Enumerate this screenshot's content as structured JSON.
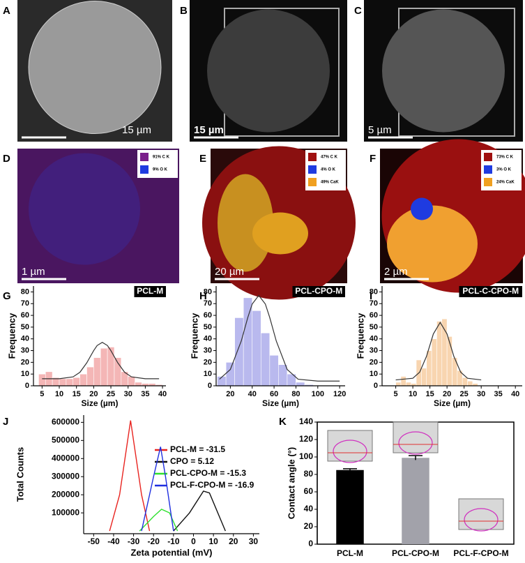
{
  "images": [
    {
      "label": "A",
      "scale_bar": "15 µm"
    },
    {
      "label": "B",
      "scale_bar": "15 µm"
    },
    {
      "label": "C",
      "scale_bar": "5 µm"
    },
    {
      "label": "D",
      "scale_bar": "1 µm",
      "legend": [
        {
          "text": "91% C K",
          "color": "#7a1f8a"
        },
        {
          "text": "9% O K",
          "color": "#1f3be0"
        }
      ]
    },
    {
      "label": "E",
      "scale_bar": "20 µm",
      "legend": [
        {
          "text": "47% C K",
          "color": "#a01010"
        },
        {
          "text": "4% O K",
          "color": "#1f3be0"
        },
        {
          "text": "49% CaK",
          "color": "#f0a020"
        }
      ]
    },
    {
      "label": "F",
      "scale_bar": "2 µm",
      "legend": [
        {
          "text": "73% C K",
          "color": "#a01010"
        },
        {
          "text": "3% O K",
          "color": "#1f3be0"
        },
        {
          "text": "24% CaK",
          "color": "#f0a020"
        }
      ]
    }
  ],
  "chart_data": [
    {
      "type": "histogram",
      "panel": "G",
      "title": "PCL-M",
      "x_label": "Size (µm)",
      "y_label": "Frequency",
      "color": "#f4b6b6",
      "bins": [
        4,
        6,
        8,
        10,
        12,
        14,
        16,
        18,
        20,
        22,
        24,
        26,
        28,
        30,
        32,
        34,
        36,
        38,
        40
      ],
      "counts": [
        10,
        12,
        7,
        6,
        6,
        7,
        10,
        16,
        24,
        32,
        33,
        24,
        12,
        8,
        3,
        2,
        2,
        1
      ],
      "fit": {
        "color": "#333333",
        "x": [
          5,
          10,
          14,
          16,
          18,
          20,
          21,
          22.5,
          24,
          25,
          27,
          29,
          31,
          35,
          39
        ],
        "values": [
          6,
          6,
          7.6,
          11.5,
          19.6,
          30,
          34.3,
          37,
          34.3,
          30,
          19.6,
          11.5,
          7.6,
          6,
          6
        ]
      },
      "xlim": [
        2.5,
        41
      ],
      "xticks": [
        5,
        10,
        15,
        20,
        25,
        30,
        35,
        40
      ],
      "ylim": [
        0,
        85
      ],
      "yticks": [
        0,
        10,
        20,
        30,
        40,
        50,
        60,
        70,
        80
      ]
    },
    {
      "type": "histogram",
      "panel": "H",
      "title": "PCL-CPO-M",
      "x_label": "Size (µm)",
      "y_label": "Frequency",
      "color": "#b9b9ee",
      "bins": [
        8,
        16,
        24,
        32,
        40,
        48,
        56,
        64,
        72,
        80,
        88,
        96
      ],
      "counts": [
        8,
        20,
        58,
        75,
        64,
        45,
        26,
        18,
        10,
        3,
        1
      ],
      "fit": {
        "color": "#333333",
        "x": [
          10,
          20,
          30,
          36,
          40,
          46,
          52,
          56,
          62,
          72,
          82,
          100,
          120
        ],
        "values": [
          5.6,
          13.9,
          38.2,
          58.3,
          69.7,
          77,
          69.7,
          58.3,
          38.2,
          13.9,
          5.6,
          4,
          4
        ]
      },
      "xlim": [
        7,
        125
      ],
      "xticks": [
        20,
        40,
        60,
        80,
        100,
        120
      ],
      "ylim": [
        0,
        85
      ],
      "yticks": [
        0,
        10,
        20,
        30,
        40,
        50,
        60,
        70,
        80
      ]
    },
    {
      "type": "histogram",
      "panel": "I",
      "title": "PCL-C-CPO-M",
      "x_label": "Size (µm)",
      "y_label": "Frequency",
      "color": "#f8d5b0",
      "bins": [
        5,
        6.5,
        8,
        9.5,
        11,
        12.5,
        14,
        15.5,
        17,
        18.5,
        20,
        21.5,
        23,
        24.5,
        26,
        27.5,
        29
      ],
      "counts": [
        3,
        8,
        3,
        2,
        22,
        15,
        30,
        40,
        55,
        57,
        42,
        24,
        13,
        7,
        4,
        2
      ],
      "fit": {
        "color": "#333333",
        "x": [
          5,
          10,
          12,
          14,
          16,
          18,
          20,
          22,
          24,
          26,
          30
        ],
        "values": [
          5,
          6.4,
          11.6,
          25.1,
          44.2,
          54,
          44.2,
          25.1,
          11.6,
          6.4,
          5
        ]
      },
      "xlim": [
        1,
        42
      ],
      "xticks": [
        5,
        10,
        15,
        20,
        25,
        30,
        35,
        40
      ],
      "ylim": [
        0,
        85
      ],
      "yticks": [
        0,
        10,
        20,
        30,
        40,
        50,
        60,
        70,
        80
      ]
    },
    {
      "type": "line",
      "panel": "J",
      "x_label": "Zeta potential (mV)",
      "y_label": "Total Counts",
      "series": [
        {
          "name": "PCL-M = -31.5",
          "color": "#e8231f",
          "x": [
            -42,
            -37,
            -31.5,
            -26,
            -22
          ],
          "values": [
            0,
            200000,
            610000,
            200000,
            0
          ]
        },
        {
          "name": "CPO = 5.12",
          "color": "#111111",
          "x": [
            -10,
            -2,
            5,
            8,
            16
          ],
          "values": [
            0,
            100000,
            220000,
            210000,
            0
          ]
        },
        {
          "name": "PCL-CPO-M = -15.3",
          "color": "#2fe02f",
          "x": [
            -27,
            -20,
            -16,
            -12,
            -8
          ],
          "values": [
            0,
            80000,
            120000,
            100000,
            0
          ]
        },
        {
          "name": "PCL-F-CPO-M = -16.9",
          "color": "#1f2fe0",
          "x": [
            -26,
            -20,
            -16.5,
            -14,
            -10
          ],
          "values": [
            0,
            300000,
            465000,
            300000,
            0
          ]
        }
      ],
      "xlim": [
        -55,
        33
      ],
      "xticks": [
        -50,
        -40,
        -30,
        -20,
        -10,
        0,
        10,
        20,
        30
      ],
      "ylim": [
        -15000,
        640000
      ],
      "yticks": [
        100000,
        200000,
        300000,
        400000,
        500000,
        600000
      ]
    },
    {
      "type": "bar",
      "panel": "K",
      "y_label": "Contact angle (°)",
      "categories": [
        "PCL-M",
        "PCL-CPO-M",
        "PCL-F-CPO-M"
      ],
      "values": [
        85,
        99,
        0
      ],
      "errors": [
        1.5,
        2.5,
        0
      ],
      "colors": [
        "#000000",
        "#a2a2aa",
        "#a2a2aa"
      ],
      "ylim": [
        0,
        140
      ],
      "yticks": [
        0,
        20,
        40,
        60,
        80,
        100,
        120,
        140
      ]
    }
  ]
}
